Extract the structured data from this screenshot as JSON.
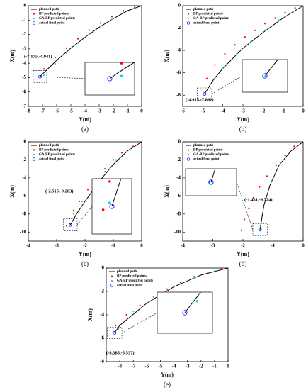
{
  "chart_data": [
    {
      "type": "scatter",
      "caption": "(a)",
      "x_label": "Y(m)",
      "y_label": "X(m)",
      "xlim": [
        -8,
        0
      ],
      "ylim": [
        -7,
        0
      ],
      "xticks": [
        -8,
        -7,
        -6,
        -5,
        -4,
        -3,
        -2,
        -1,
        0
      ],
      "yticks": [
        0,
        -1,
        -2,
        -3,
        -4,
        -5,
        -6,
        -7
      ],
      "annotation": "(-7.175,-4.941)",
      "series": [
        {
          "name": "planned path",
          "style": "line",
          "color": "#000000",
          "x": [
            0,
            -1,
            -2,
            -3,
            -4,
            -5,
            -6,
            -7,
            -7.175
          ],
          "values": [
            0,
            -0.35,
            -0.9,
            -1.5,
            -2.2,
            -2.95,
            -3.8,
            -4.75,
            -4.941
          ]
        },
        {
          "name": "BP predicted points",
          "style": "dot",
          "color": "#ff0000",
          "x": [
            -0.5,
            -1.3,
            -2.1,
            -2.9,
            -3.7,
            -4.5,
            -5.3,
            -6.1,
            -6.9
          ],
          "values": [
            -0.1,
            -0.35,
            -0.75,
            -1.2,
            -1.7,
            -2.3,
            -2.95,
            -3.6,
            -4.4
          ]
        },
        {
          "name": "GA-BP predicted points",
          "style": "dot",
          "color": "#00d8e8",
          "x": [
            -0.5,
            -1.3,
            -2.1,
            -2.9,
            -3.7,
            -4.5,
            -5.3,
            -6.1,
            -6.9
          ],
          "values": [
            -0.15,
            -0.45,
            -0.95,
            -1.45,
            -2.0,
            -2.6,
            -3.3,
            -4.05,
            -4.85
          ]
        },
        {
          "name": "actual final point",
          "style": "circle",
          "color": "#0000ff",
          "x": [
            -7.175
          ],
          "values": [
            -4.941
          ]
        }
      ]
    },
    {
      "type": "scatter",
      "caption": "(b)",
      "x_label": "Y(m)",
      "y_label": "X(m)",
      "xlim": [
        -6,
        0
      ],
      "ylim": [
        -9,
        0
      ],
      "xticks": [
        -6,
        -5,
        -4,
        -3,
        -2,
        -1,
        0
      ],
      "yticks": [
        0,
        -2,
        -4,
        -6,
        -8
      ],
      "annotation": "(-4.915,-7.892)",
      "series": [
        {
          "name": "planned path",
          "style": "line",
          "color": "#000000",
          "x": [
            0,
            -1,
            -2,
            -3,
            -4,
            -4.5,
            -4.915
          ],
          "values": [
            0,
            -1.1,
            -2.4,
            -3.8,
            -5.6,
            -6.7,
            -7.892
          ]
        },
        {
          "name": "BP predicted points",
          "style": "dot",
          "color": "#ff0000",
          "x": [
            -0.4,
            -0.9,
            -1.4,
            -1.9,
            -2.4,
            -2.9,
            -3.4,
            -3.9,
            -4.4,
            -4.8
          ],
          "values": [
            -0.2,
            -0.6,
            -1.1,
            -1.6,
            -2.2,
            -2.8,
            -3.5,
            -4.3,
            -5.3,
            -6.5
          ]
        },
        {
          "name": "GA-BP predicted points",
          "style": "dot",
          "color": "#00d8e8",
          "x": [
            -0.5,
            -1.2,
            -1.9,
            -2.6,
            -3.3,
            -4.0,
            -4.6,
            -4.9
          ],
          "values": [
            -0.55,
            -1.3,
            -2.2,
            -3.2,
            -4.3,
            -5.6,
            -7.0,
            -7.9
          ]
        },
        {
          "name": "actual final point",
          "style": "circle",
          "color": "#0000ff",
          "x": [
            -4.915
          ],
          "values": [
            -7.892
          ]
        }
      ]
    },
    {
      "type": "scatter",
      "caption": "(c)",
      "x_label": "Y(m)",
      "y_label": "X(m)",
      "xlim": [
        -4,
        0
      ],
      "ylim": [
        -11,
        0
      ],
      "xticks": [
        -4,
        -3,
        -2,
        -1,
        0
      ],
      "yticks": [
        0,
        -2,
        -4,
        -6,
        -8,
        -10
      ],
      "annotation": "(-2.515,-9.203)",
      "series": [
        {
          "name": "planned path",
          "style": "line",
          "color": "#000000",
          "x": [
            0,
            -0.5,
            -1,
            -1.5,
            -2,
            -2.3,
            -2.515
          ],
          "values": [
            0,
            -1.0,
            -2.5,
            -4.4,
            -6.6,
            -8.0,
            -9.203
          ]
        },
        {
          "name": "BP predicted points",
          "style": "dot",
          "color": "#ff0000",
          "x": [
            -0.3,
            -0.7,
            -1.0,
            -1.3,
            -1.6,
            -1.9,
            -2.2,
            -2.4,
            -2.55,
            -2.65
          ],
          "values": [
            -0.5,
            -1.2,
            -2.0,
            -3.0,
            -4.1,
            -5.3,
            -6.6,
            -7.6,
            -8.5,
            -9.3
          ]
        },
        {
          "name": "GA-BP predicted points",
          "style": "dot",
          "color": "#00d8e8",
          "x": [
            -0.4,
            -0.9,
            -1.3,
            -1.7,
            -2.1,
            -2.4,
            -2.55
          ],
          "values": [
            -0.8,
            -2.0,
            -3.3,
            -4.9,
            -6.6,
            -8.0,
            -9.1
          ]
        },
        {
          "name": "actual final point",
          "style": "circle",
          "color": "#0000ff",
          "x": [
            -2.515
          ],
          "values": [
            -9.203
          ]
        }
      ]
    },
    {
      "type": "scatter",
      "caption": "(d)",
      "x_label": "Y(m)",
      "y_label": "X(m)",
      "xlim": [
        -4,
        0
      ],
      "ylim": [
        -11,
        0
      ],
      "xticks": [
        -4,
        -3,
        -2,
        -1,
        0
      ],
      "yticks": [
        0,
        -2,
        -4,
        -6,
        -8,
        -10
      ],
      "annotation": "(-1.431,-9.724)",
      "series": [
        {
          "name": "planned path",
          "style": "line",
          "color": "#000000",
          "x": [
            0,
            -0.4,
            -0.8,
            -1.1,
            -1.3,
            -1.431
          ],
          "values": [
            0,
            -1.0,
            -2.6,
            -4.8,
            -7.0,
            -9.724
          ]
        },
        {
          "name": "BP predicted points",
          "style": "dot",
          "color": "#ff0000",
          "x": [
            -0.3,
            -0.6,
            -0.9,
            -1.2,
            -1.45,
            -1.65,
            -1.8,
            -1.95,
            -2.05
          ],
          "values": [
            -0.5,
            -1.5,
            -2.6,
            -3.8,
            -5.0,
            -6.2,
            -7.4,
            -8.6,
            -9.8
          ]
        },
        {
          "name": "GA-BP predicted points",
          "style": "dot",
          "color": "#00d8e8",
          "x": [
            -0.35,
            -0.75,
            -1.05,
            -1.25,
            -1.38,
            -1.45
          ],
          "values": [
            -0.9,
            -2.4,
            -4.3,
            -6.3,
            -8.2,
            -9.7
          ]
        },
        {
          "name": "actual final point",
          "style": "circle",
          "color": "#0000ff",
          "x": [
            -1.431
          ],
          "values": [
            -9.724
          ]
        }
      ]
    },
    {
      "type": "scatter",
      "caption": "(e)",
      "x_label": "Y(m)",
      "y_label": "X(m)",
      "xlim": [
        -9,
        0
      ],
      "ylim": [
        -8,
        0
      ],
      "xticks": [
        -8,
        -7,
        -6,
        -5,
        -4,
        -3,
        -2,
        -1,
        0
      ],
      "yticks": [
        0,
        -2,
        -4,
        -6,
        -8
      ],
      "annotation": "(-8.385,-5.537)",
      "series": [
        {
          "name": "planned path",
          "style": "line",
          "color": "#000000",
          "x": [
            0,
            -2,
            -4,
            -6,
            -8,
            -8.385
          ],
          "values": [
            0,
            -0.6,
            -1.6,
            -3.0,
            -4.9,
            -5.537
          ]
        },
        {
          "name": "BP predicted points",
          "style": "dot",
          "color": "#ff0000",
          "x": [
            -0.5,
            -1.5,
            -2.5,
            -3.5,
            -4.5,
            -5.5,
            -6.5,
            -7.5,
            -8.3
          ],
          "values": [
            -0.1,
            -0.35,
            -0.75,
            -1.25,
            -1.8,
            -2.45,
            -3.2,
            -4.0,
            -4.9
          ]
        },
        {
          "name": "GA-BP predicted points",
          "style": "dot",
          "color": "#00d8e8",
          "x": [
            -1,
            -2.5,
            -4,
            -5.5,
            -7,
            -8.1
          ],
          "values": [
            -0.25,
            -0.85,
            -1.55,
            -2.5,
            -3.7,
            -5.2
          ]
        },
        {
          "name": "actual final point",
          "style": "circle",
          "color": "#0000ff",
          "x": [
            -8.385
          ],
          "values": [
            -5.537
          ]
        }
      ]
    }
  ]
}
